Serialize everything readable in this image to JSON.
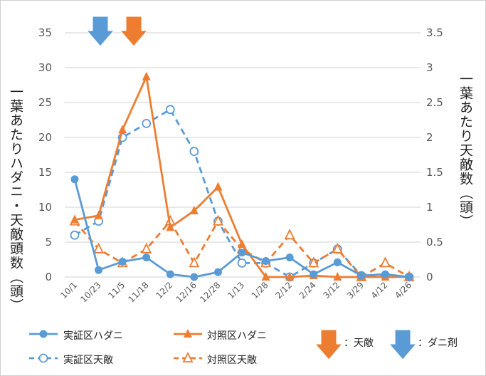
{
  "chart_data": {
    "type": "line",
    "ylabel_left": "一葉あたりハダニ・天敵頭数（頭）",
    "ylabel_right": "一葉あたり天敵数（頭）",
    "ylim_left": [
      0,
      35
    ],
    "ylim_right": [
      0,
      3.5
    ],
    "yticks_left": [
      "0",
      "5",
      "10",
      "15",
      "20",
      "25",
      "30",
      "35"
    ],
    "yticks_right": [
      "0",
      "0.5",
      "1",
      "1.5",
      "2",
      "2.5",
      "3",
      "3.5"
    ],
    "grid": true,
    "categories": [
      "10/1",
      "10/23",
      "11/5",
      "11/18",
      "12/2",
      "12/16",
      "12/28",
      "1/13",
      "1/28",
      "2/12",
      "2/24",
      "3/12",
      "3/29",
      "4/12",
      "4/26"
    ],
    "series": [
      {
        "name": "実証区ハダニ",
        "axis": "left",
        "color": "#5B9BD5",
        "style": "solid",
        "marker": "filled-circle",
        "values": [
          14,
          1,
          2.2,
          2.8,
          0.4,
          0,
          0.7,
          3.5,
          2.3,
          2.8,
          0.4,
          2.1,
          0.2,
          0.4,
          0
        ]
      },
      {
        "name": "対照区ハダニ",
        "axis": "left",
        "color": "#ED7D31",
        "style": "solid",
        "marker": "filled-triangle",
        "values": [
          8.2,
          8.8,
          21.1,
          28.7,
          7.1,
          9.5,
          12.9,
          4.7,
          0,
          0,
          0.2,
          0,
          0,
          0,
          0
        ]
      },
      {
        "name": "実証区天敵",
        "axis": "right",
        "color": "#5B9BD5",
        "style": "dashed",
        "marker": "open-circle",
        "values": [
          0.6,
          0.8,
          2.0,
          2.2,
          2.4,
          1.8,
          0.8,
          0.2,
          0.2,
          0,
          0.2,
          0.4,
          0.02,
          0.02,
          0
        ]
      },
      {
        "name": "対照区天敵",
        "axis": "right",
        "color": "#ED7D31",
        "style": "dashed",
        "marker": "open-triangle",
        "values": [
          0.8,
          0.4,
          0.2,
          0.4,
          0.8,
          0.2,
          0.8,
          0.4,
          0.2,
          0.6,
          0.2,
          0.4,
          0,
          0.2,
          0
        ]
      }
    ],
    "annotations": [
      {
        "label": "：天敵",
        "color": "#ED7D31",
        "icon": "down-arrow",
        "applied_near": "11/5-11/18"
      },
      {
        "label": "：ダニ剤",
        "color": "#5B9BD5",
        "icon": "down-arrow",
        "applied_near": "10/23"
      }
    ],
    "legend": "bottom"
  }
}
